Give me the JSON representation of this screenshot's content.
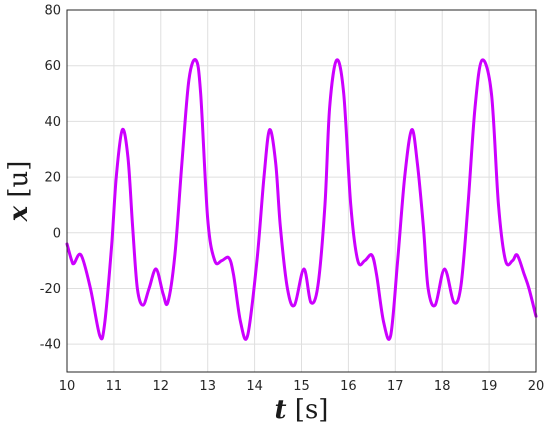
{
  "chart_data": {
    "type": "line",
    "xlabel": {
      "var": "t",
      "unit": " [s]"
    },
    "ylabel": {
      "var": "x",
      "unit": " [u]"
    },
    "xlim": [
      10,
      20
    ],
    "ylim": [
      -50,
      80
    ],
    "xticks": [
      10,
      11,
      12,
      13,
      14,
      15,
      16,
      17,
      18,
      19,
      20
    ],
    "yticks": [
      -40,
      -20,
      0,
      20,
      40,
      60,
      80
    ],
    "grid": true,
    "line_color": "#cc00ff",
    "series": [
      {
        "name": "",
        "x": [
          10.0,
          10.1,
          10.15,
          10.3,
          10.5,
          10.7,
          10.8,
          10.95,
          11.05,
          11.18,
          11.3,
          11.4,
          11.5,
          11.62,
          11.75,
          11.9,
          12.05,
          12.15,
          12.3,
          12.45,
          12.6,
          12.75,
          12.85,
          13.0,
          13.15,
          13.3,
          13.45,
          13.55,
          13.7,
          13.85,
          14.05,
          14.2,
          14.32,
          14.45,
          14.55,
          14.7,
          14.85,
          15.05,
          15.2,
          15.35,
          15.5,
          15.6,
          15.75,
          15.9,
          16.05,
          16.2,
          16.35,
          16.5,
          16.6,
          16.75,
          16.9,
          17.05,
          17.2,
          17.35,
          17.47,
          17.6,
          17.7,
          17.85,
          18.05,
          18.25,
          18.4,
          18.55,
          18.7,
          18.85,
          19.05,
          19.2,
          19.35,
          19.5,
          19.6,
          19.75,
          19.85,
          20.0
        ],
        "y": [
          -4,
          -10,
          -11,
          -8,
          -20,
          -37,
          -33,
          -5,
          20,
          37,
          27,
          2,
          -20,
          -26,
          -20,
          -13,
          -22,
          -25,
          -8,
          25,
          55,
          62,
          50,
          5,
          -10,
          -10,
          -9,
          -15,
          -32,
          -37,
          -10,
          20,
          37,
          25,
          2,
          -20,
          -26,
          -13,
          -25,
          -19,
          10,
          45,
          62,
          50,
          10,
          -10,
          -10,
          -8,
          -15,
          -32,
          -37,
          -10,
          20,
          37,
          25,
          2,
          -20,
          -26,
          -13,
          -25,
          -19,
          10,
          45,
          62,
          50,
          10,
          -10,
          -10,
          -8,
          -15,
          -20,
          -30
        ]
      }
    ]
  }
}
